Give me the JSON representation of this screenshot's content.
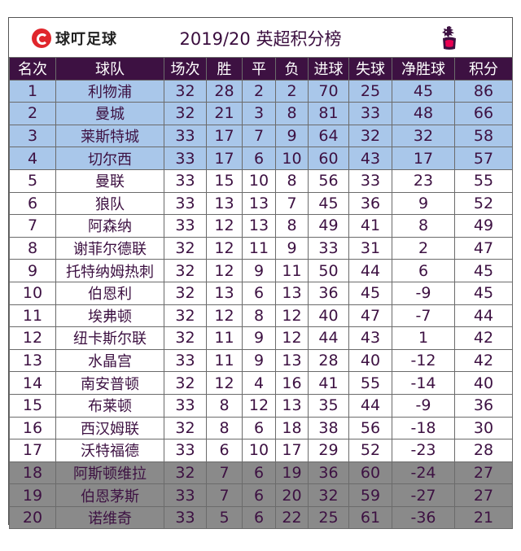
{
  "header": {
    "logo_text": "球叮足球",
    "title": "2019/20 英超积分榜"
  },
  "columns": [
    "名次",
    "球队",
    "场次",
    "胜",
    "平",
    "负",
    "进球",
    "失球",
    "净胜球",
    "积分"
  ],
  "rows": [
    {
      "rank": "1",
      "team": "利物浦",
      "played": "32",
      "won": "28",
      "drawn": "2",
      "lost": "2",
      "gf": "70",
      "ga": "25",
      "gd": "45",
      "pts": "86",
      "zone": "ucl"
    },
    {
      "rank": "2",
      "team": "曼城",
      "played": "32",
      "won": "21",
      "drawn": "3",
      "lost": "8",
      "gf": "81",
      "ga": "33",
      "gd": "48",
      "pts": "66",
      "zone": "ucl"
    },
    {
      "rank": "3",
      "team": "莱斯特城",
      "played": "33",
      "won": "17",
      "drawn": "7",
      "lost": "9",
      "gf": "64",
      "ga": "32",
      "gd": "32",
      "pts": "58",
      "zone": "ucl"
    },
    {
      "rank": "4",
      "team": "切尔西",
      "played": "33",
      "won": "17",
      "drawn": "6",
      "lost": "10",
      "gf": "60",
      "ga": "43",
      "gd": "17",
      "pts": "57",
      "zone": "ucl"
    },
    {
      "rank": "5",
      "team": "曼联",
      "played": "33",
      "won": "15",
      "drawn": "10",
      "lost": "8",
      "gf": "56",
      "ga": "33",
      "gd": "23",
      "pts": "55",
      "zone": "mid"
    },
    {
      "rank": "6",
      "team": "狼队",
      "played": "33",
      "won": "13",
      "drawn": "13",
      "lost": "7",
      "gf": "45",
      "ga": "36",
      "gd": "9",
      "pts": "52",
      "zone": "mid"
    },
    {
      "rank": "7",
      "team": "阿森纳",
      "played": "33",
      "won": "12",
      "drawn": "13",
      "lost": "8",
      "gf": "49",
      "ga": "41",
      "gd": "8",
      "pts": "49",
      "zone": "mid"
    },
    {
      "rank": "8",
      "team": "谢菲尔德联",
      "played": "32",
      "won": "12",
      "drawn": "11",
      "lost": "9",
      "gf": "33",
      "ga": "31",
      "gd": "2",
      "pts": "47",
      "zone": "mid"
    },
    {
      "rank": "9",
      "team": "托特纳姆热刺",
      "played": "32",
      "won": "12",
      "drawn": "9",
      "lost": "11",
      "gf": "50",
      "ga": "44",
      "gd": "6",
      "pts": "45",
      "zone": "mid"
    },
    {
      "rank": "10",
      "team": "伯恩利",
      "played": "32",
      "won": "13",
      "drawn": "6",
      "lost": "13",
      "gf": "36",
      "ga": "45",
      "gd": "-9",
      "pts": "45",
      "zone": "mid"
    },
    {
      "rank": "11",
      "team": "埃弗顿",
      "played": "32",
      "won": "12",
      "drawn": "8",
      "lost": "12",
      "gf": "40",
      "ga": "47",
      "gd": "-7",
      "pts": "44",
      "zone": "mid"
    },
    {
      "rank": "12",
      "team": "纽卡斯尔联",
      "played": "32",
      "won": "11",
      "drawn": "9",
      "lost": "12",
      "gf": "44",
      "ga": "43",
      "gd": "1",
      "pts": "42",
      "zone": "mid"
    },
    {
      "rank": "13",
      "team": "水晶宫",
      "played": "33",
      "won": "11",
      "drawn": "9",
      "lost": "13",
      "gf": "28",
      "ga": "40",
      "gd": "-12",
      "pts": "42",
      "zone": "mid"
    },
    {
      "rank": "14",
      "team": "南安普顿",
      "played": "32",
      "won": "12",
      "drawn": "4",
      "lost": "16",
      "gf": "41",
      "ga": "55",
      "gd": "-14",
      "pts": "40",
      "zone": "mid"
    },
    {
      "rank": "15",
      "team": "布莱顿",
      "played": "33",
      "won": "8",
      "drawn": "12",
      "lost": "13",
      "gf": "35",
      "ga": "44",
      "gd": "-9",
      "pts": "36",
      "zone": "mid"
    },
    {
      "rank": "16",
      "team": "西汉姆联",
      "played": "32",
      "won": "8",
      "drawn": "6",
      "lost": "18",
      "gf": "38",
      "ga": "56",
      "gd": "-18",
      "pts": "30",
      "zone": "mid"
    },
    {
      "rank": "17",
      "team": "沃特福德",
      "played": "33",
      "won": "6",
      "drawn": "10",
      "lost": "17",
      "gf": "29",
      "ga": "52",
      "gd": "-23",
      "pts": "28",
      "zone": "mid"
    },
    {
      "rank": "18",
      "team": "阿斯顿维拉",
      "played": "32",
      "won": "7",
      "drawn": "6",
      "lost": "19",
      "gf": "36",
      "ga": "60",
      "gd": "-24",
      "pts": "27",
      "zone": "rel"
    },
    {
      "rank": "19",
      "team": "伯恩茅斯",
      "played": "33",
      "won": "7",
      "drawn": "6",
      "lost": "20",
      "gf": "32",
      "ga": "59",
      "gd": "-27",
      "pts": "27",
      "zone": "rel"
    },
    {
      "rank": "20",
      "team": "诺维奇",
      "played": "33",
      "won": "5",
      "drawn": "6",
      "lost": "22",
      "gf": "25",
      "ga": "61",
      "gd": "-36",
      "pts": "21",
      "zone": "rel"
    }
  ],
  "colors": {
    "header_bg": "#3d1142",
    "champions_league_zone": "#a9c7ea",
    "relegation_zone": "#8a8a8a",
    "text": "#3d1142",
    "logo_red": "#e0262c"
  },
  "icons": {
    "brand_logo": "qiuding-logo-icon",
    "league_logo": "premier-league-lion-icon"
  }
}
